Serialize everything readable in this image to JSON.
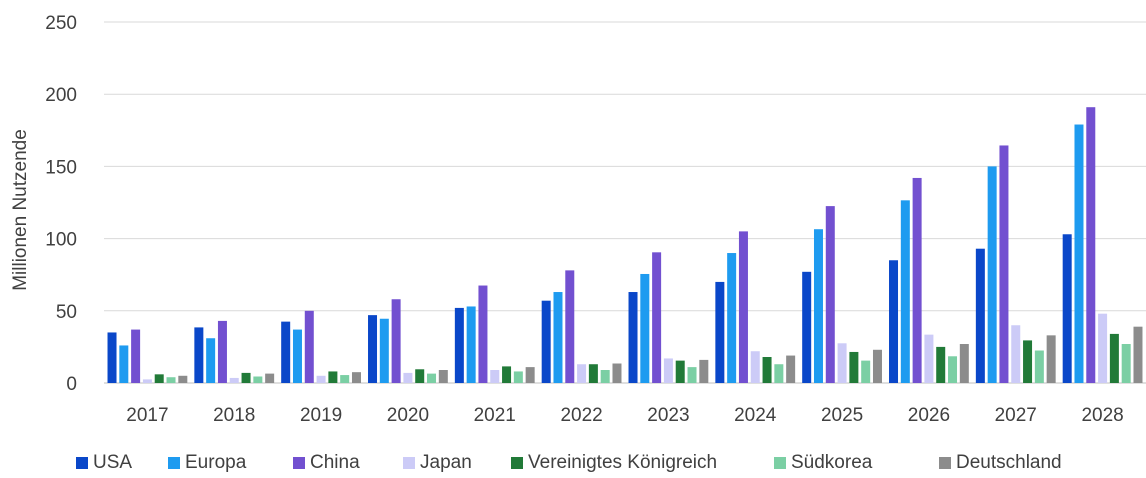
{
  "chart_data": {
    "type": "bar",
    "title": "",
    "xlabel": "",
    "ylabel": "Millionen Nutzende",
    "ylim": [
      0,
      250
    ],
    "yticks": [
      0,
      50,
      100,
      150,
      200,
      250
    ],
    "grid": true,
    "legend": "bottom",
    "categories": [
      "2017",
      "2018",
      "2019",
      "2020",
      "2021",
      "2022",
      "2023",
      "2024",
      "2025",
      "2026",
      "2027",
      "2028"
    ],
    "series": [
      {
        "name": "USA",
        "color": "#0a47c9",
        "values": [
          35,
          38.5,
          42.5,
          47,
          52,
          57,
          63,
          70,
          77,
          85,
          93,
          103
        ]
      },
      {
        "name": "Europa",
        "color": "#1e9bf0",
        "values": [
          26,
          31,
          37,
          44.5,
          53,
          63,
          75.5,
          90,
          106.5,
          126.5,
          150,
          179
        ]
      },
      {
        "name": "China",
        "color": "#7250d0",
        "values": [
          37,
          43,
          50,
          58,
          67.5,
          78,
          90.5,
          105,
          122.5,
          142,
          164.5,
          191
        ]
      },
      {
        "name": "Japan",
        "color": "#cccbf7",
        "values": [
          2.5,
          3.5,
          5,
          7,
          9,
          13,
          17,
          22,
          27.5,
          33.5,
          40,
          48
        ]
      },
      {
        "name": "Vereinigtes Königreich",
        "color": "#217a38",
        "values": [
          6,
          7,
          8,
          9.5,
          11.5,
          13,
          15.5,
          18,
          21.5,
          25,
          29.5,
          34
        ]
      },
      {
        "name": "Südkorea",
        "color": "#7bcfa4",
        "values": [
          4,
          4.5,
          5.5,
          6.5,
          8,
          9,
          11,
          13,
          15.5,
          18.5,
          22.5,
          27
        ]
      },
      {
        "name": "Deutschland",
        "color": "#8c8c8c",
        "values": [
          5,
          6.5,
          7.5,
          9,
          11,
          13.5,
          16,
          19,
          23,
          27,
          33,
          39
        ]
      }
    ]
  }
}
